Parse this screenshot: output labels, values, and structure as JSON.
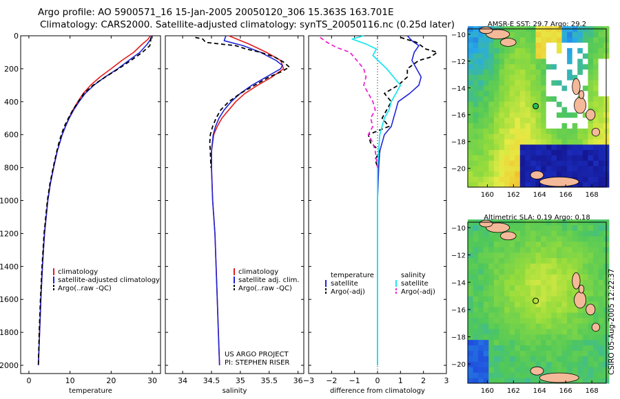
{
  "header": {
    "line1": "Argo profile: AO 5900571_16 15-Jan-2005 20050120_306 15.363S 163.701E",
    "line2": "Climatology: CARS2000. Satellite-adjusted climatology: synTS_20050116.nc (0.25d later)"
  },
  "signature": "CSIRO 05-Aug-2005 12:22:37",
  "colors": {
    "climatology": "#e41a1c",
    "satellite": "#1d22d6",
    "argo": "#000000",
    "sal_sat": "#1fe6f0",
    "sal_argo": "#ee22cc",
    "land": "#f4b998",
    "map_white": "#ffffff"
  },
  "chart_data": [
    {
      "type": "line",
      "id": "temperature",
      "xlabel": "temperature",
      "ylabel": "",
      "xlim": [
        -2,
        32
      ],
      "ylim": [
        2050,
        0
      ],
      "xticks": [
        0,
        10,
        20,
        30
      ],
      "yticks": [
        0,
        200,
        400,
        600,
        800,
        1000,
        1200,
        1400,
        1600,
        1800,
        2000
      ],
      "legend": [
        "climatology",
        "satellite-adjusted climatology",
        "Argo(..raw -QC)"
      ],
      "series": [
        {
          "name": "climatology",
          "depth": [
            0,
            20,
            50,
            100,
            150,
            200,
            250,
            300,
            350,
            400,
            450,
            500,
            550,
            600,
            650,
            700,
            800,
            900,
            1000,
            1200,
            1400,
            1600,
            1800,
            2000
          ],
          "values": [
            29.5,
            29.0,
            27.6,
            25.5,
            22.6,
            20.0,
            17.3,
            15.0,
            13.2,
            11.9,
            10.7,
            9.7,
            8.9,
            8.1,
            7.5,
            6.9,
            6.0,
            5.2,
            4.6,
            3.8,
            3.3,
            2.9,
            2.6,
            2.3
          ]
        },
        {
          "name": "satellite",
          "depth": [
            0,
            20,
            50,
            100,
            150,
            200,
            250,
            300,
            350,
            400,
            450,
            500,
            550,
            600,
            650,
            700,
            800,
            900,
            1000,
            1200,
            1400,
            1600,
            1800,
            2000
          ],
          "values": [
            29.8,
            29.6,
            28.8,
            27.0,
            24.3,
            21.6,
            18.5,
            15.8,
            13.7,
            12.2,
            10.9,
            9.8,
            8.9,
            8.1,
            7.5,
            6.9,
            6.0,
            5.2,
            4.6,
            3.8,
            3.3,
            2.9,
            2.6,
            2.3
          ]
        },
        {
          "name": "Argo",
          "depth": [
            10,
            30,
            60,
            100,
            150,
            200,
            250,
            300,
            350,
            400,
            450,
            500,
            550,
            600,
            650,
            700,
            800,
            900,
            1000,
            1200,
            1400,
            1600,
            1800,
            2000
          ],
          "values": [
            29.7,
            29.6,
            29.4,
            27.6,
            24.8,
            21.8,
            18.6,
            15.6,
            13.4,
            12.0,
            10.7,
            9.6,
            8.6,
            7.9,
            7.3,
            6.8,
            5.9,
            5.1,
            4.5,
            3.7,
            3.2,
            2.8,
            2.5,
            2.3
          ]
        }
      ]
    },
    {
      "type": "line",
      "id": "salinity",
      "xlabel": "salinity",
      "ylabel": "",
      "xlim": [
        33.7,
        36.1
      ],
      "ylim": [
        2050,
        0
      ],
      "xticks": [
        34,
        34.5,
        35,
        35.5,
        36
      ],
      "legend": [
        "climatology",
        "satellite adj. clim.",
        "Argo(..raw -QC)"
      ],
      "annotation": [
        "US ARGO PROJECT",
        "PI: STEPHEN RISER"
      ],
      "series": [
        {
          "name": "climatology",
          "depth": [
            0,
            50,
            100,
            150,
            200,
            250,
            300,
            350,
            400,
            450,
            500,
            550,
            600,
            700,
            800,
            1000,
            1200,
            1400,
            1600,
            1800,
            2000
          ],
          "values": [
            34.8,
            35.15,
            35.45,
            35.7,
            35.75,
            35.55,
            35.3,
            35.08,
            34.92,
            34.8,
            34.68,
            34.6,
            34.54,
            34.5,
            34.5,
            34.52,
            34.56,
            34.58,
            34.6,
            34.62,
            34.64
          ]
        },
        {
          "name": "satellite",
          "depth": [
            0,
            30,
            60,
            100,
            150,
            180,
            200,
            250,
            300,
            350,
            400,
            450,
            500,
            550,
            600,
            700,
            800,
            1000,
            1200,
            1400,
            1600,
            1800,
            2000
          ],
          "values": [
            34.75,
            34.72,
            35.05,
            35.35,
            35.62,
            35.73,
            35.7,
            35.45,
            35.2,
            35.0,
            34.84,
            34.72,
            34.63,
            34.57,
            34.53,
            34.5,
            34.5,
            34.52,
            34.56,
            34.58,
            34.6,
            34.62,
            34.64
          ]
        },
        {
          "name": "Argo",
          "depth": [
            10,
            20,
            40,
            60,
            80,
            100,
            130,
            160,
            190,
            220,
            250,
            300,
            350,
            400,
            450,
            500,
            550,
            600,
            650,
            700,
            800
          ],
          "values": [
            34.22,
            34.35,
            34.4,
            34.92,
            35.1,
            35.35,
            35.6,
            35.75,
            35.85,
            35.7,
            35.5,
            35.25,
            35.0,
            34.8,
            34.66,
            34.58,
            34.52,
            34.48,
            34.47,
            34.48,
            34.49
          ]
        }
      ]
    },
    {
      "type": "line",
      "id": "difference",
      "xlabel": "difference from climatology",
      "ylabel": "",
      "xlim": [
        -3,
        3
      ],
      "ylim": [
        2050,
        0
      ],
      "xticks": [
        -3,
        -2,
        -1,
        0,
        1,
        2,
        3
      ],
      "legend_left": [
        "temperature",
        "satellite",
        "Argo(-adj)"
      ],
      "legend_right": [
        "salinity",
        "satellite",
        "Argo(-adj)"
      ],
      "series": [
        {
          "name": "temperature satellite",
          "depth": [
            0,
            30,
            60,
            100,
            150,
            200,
            250,
            300,
            350,
            400,
            450,
            500,
            550,
            600,
            700,
            800,
            1000,
            1500,
            2000
          ],
          "values": [
            1.3,
            1.5,
            1.8,
            1.6,
            1.5,
            1.7,
            1.9,
            1.8,
            1.4,
            0.9,
            0.8,
            0.7,
            0.6,
            0.3,
            0.1,
            0.05,
            0,
            0,
            0
          ]
        },
        {
          "name": "temperature Argo",
          "depth": [
            10,
            40,
            80,
            100,
            130,
            150,
            200,
            250,
            300,
            350,
            400,
            450,
            500,
            550,
            600,
            650,
            700,
            750,
            800
          ],
          "values": [
            1.0,
            1.7,
            2.1,
            2.6,
            2.3,
            1.8,
            1.3,
            1.3,
            0.9,
            0.3,
            0.6,
            0.4,
            0.2,
            0.5,
            -0.4,
            -0.3,
            0.1,
            -0.1,
            0
          ]
        },
        {
          "name": "salinity satellite",
          "depth": [
            0,
            20,
            50,
            80,
            120,
            160,
            200,
            250,
            300,
            350,
            400,
            450,
            500,
            600,
            700,
            800,
            1000,
            2000
          ],
          "values": [
            -0.6,
            -1.1,
            -0.5,
            -0.05,
            -0.2,
            0.1,
            0.4,
            0.7,
            1.0,
            0.8,
            0.6,
            0.5,
            0.3,
            0.1,
            0.05,
            0,
            0,
            0
          ]
        },
        {
          "name": "salinity Argo",
          "depth": [
            10,
            40,
            70,
            100,
            150,
            200,
            250,
            300,
            350,
            400,
            450,
            500,
            550,
            600,
            650,
            700,
            750,
            800
          ],
          "values": [
            -2.5,
            -2.2,
            -1.8,
            -1.2,
            -0.9,
            -0.6,
            -0.5,
            -0.6,
            -0.4,
            -0.2,
            -0.1,
            -0.3,
            -0.2,
            -0.4,
            -0.2,
            -0.1,
            -0.05,
            0
          ]
        }
      ]
    },
    {
      "type": "heatmap",
      "id": "sst-map",
      "title": "AMSR-E SST: 29.7 Argo: 29.2",
      "xticks": [
        160,
        162,
        164,
        166,
        168
      ],
      "yticks": [
        -10,
        -12,
        -14,
        -16,
        -18,
        -20
      ],
      "xlim": [
        158.5,
        169.1
      ],
      "ylim": [
        -21.4,
        -9.6
      ],
      "marker": {
        "lon": 163.7,
        "lat": -15.36
      }
    },
    {
      "type": "heatmap",
      "id": "sla-map",
      "title": "Altimetric SLA: 0.19 Argo: 0.18",
      "xticks": [
        160,
        162,
        164,
        166,
        168
      ],
      "yticks": [
        -10,
        -12,
        -14,
        -16,
        -18,
        -20
      ],
      "xlim": [
        158.5,
        169.1
      ],
      "ylim": [
        -21.4,
        -9.6
      ],
      "marker": {
        "lon": 163.7,
        "lat": -15.36
      }
    }
  ]
}
